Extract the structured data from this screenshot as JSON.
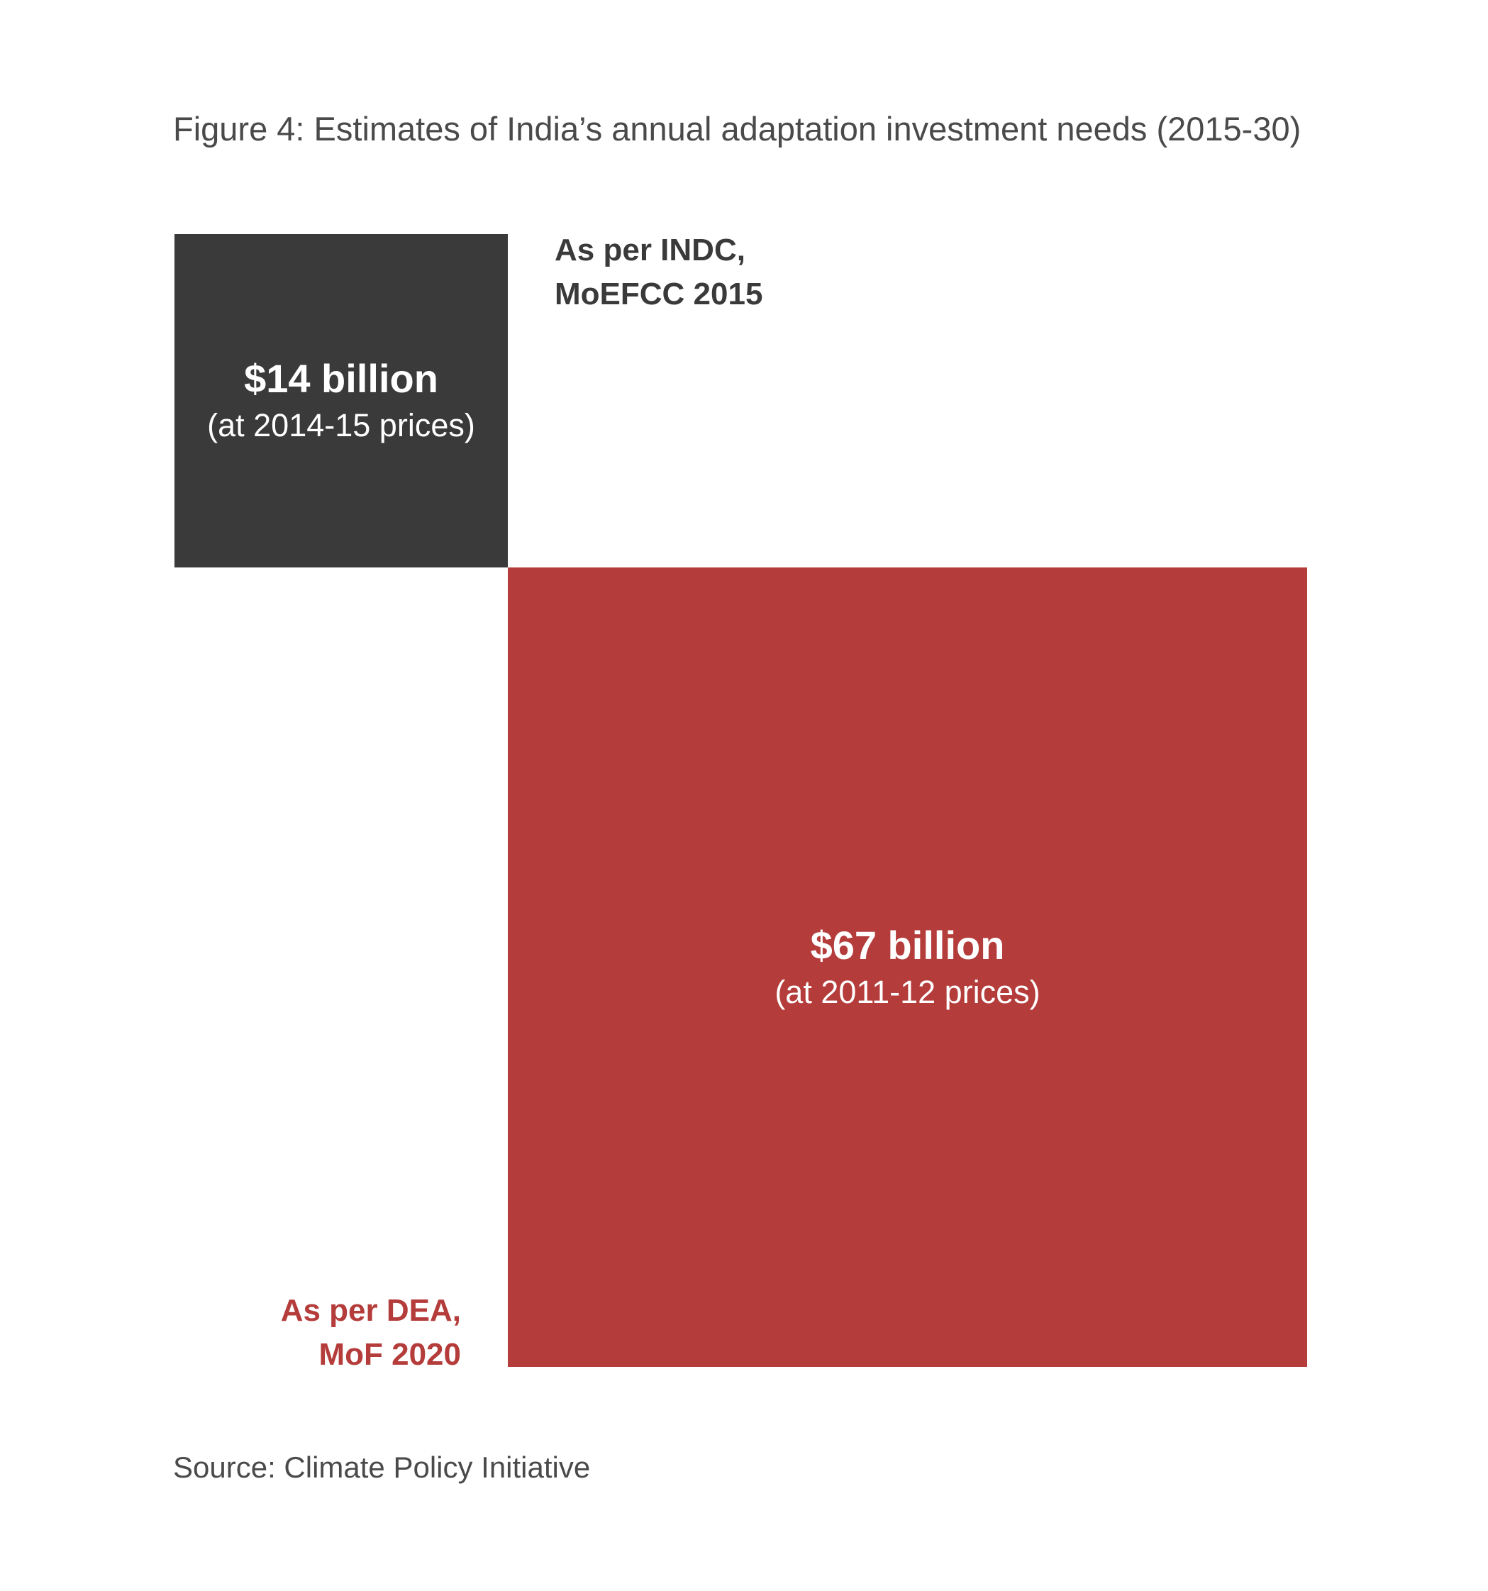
{
  "figure_title": "Figure 4: Estimates of India’s annual adaptation investment needs (2015-30)",
  "source": "Source: Climate Policy Initiative",
  "colors": {
    "indc_box": "#3a3a3b",
    "dea_box": "#b43c3a",
    "indc_label": "#3a3a3b",
    "dea_label": "#b43c3a",
    "text_muted": "#4a4a4a"
  },
  "chart_data": {
    "type": "proportional-area",
    "title": "Figure 4: Estimates of India’s annual adaptation investment needs (2015-30)",
    "unit": "billion USD",
    "items": [
      {
        "key": "indc",
        "value": 14,
        "value_label": "$14 billion",
        "note": "(at 2014-15 prices)",
        "source_lines": [
          "As per INDC,",
          "MoEFCC 2015"
        ]
      },
      {
        "key": "dea",
        "value": 67,
        "value_label": "$67 billion",
        "note": "(at 2011-12 prices)",
        "source_lines": [
          "As per DEA,",
          "MoF 2020"
        ]
      }
    ]
  }
}
